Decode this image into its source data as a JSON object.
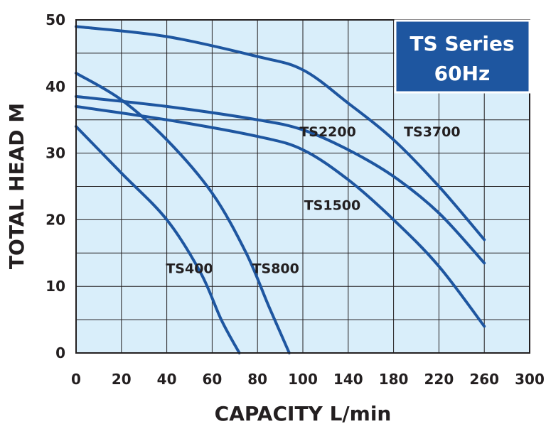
{
  "chart_data": {
    "type": "line",
    "title": "TS Series",
    "subtitle": "60Hz",
    "xlabel": "CAPACITY L/min",
    "ylabel": "TOTAL HEAD M",
    "x_tick_labels": [
      "0",
      "20",
      "40",
      "60",
      "80",
      "100",
      "140",
      "180",
      "220",
      "260",
      "300"
    ],
    "y_ticks": [
      0,
      10,
      20,
      30,
      40,
      50
    ],
    "ylim": [
      0,
      50
    ],
    "grid": true,
    "legend": "none (series labelled directly on the curves)",
    "x_axis_note": "x axis is piecewise: 20 L/min per gridline up to 100, then 40 L/min per gridline up to 300",
    "series": [
      {
        "name": "TS400",
        "x": [
          0,
          20,
          40,
          55,
          64,
          72
        ],
        "y": [
          34,
          27,
          20,
          12,
          5,
          0
        ]
      },
      {
        "name": "TS800",
        "x": [
          0,
          20,
          40,
          60,
          75,
          85,
          94
        ],
        "y": [
          42,
          38,
          32,
          24,
          15,
          7,
          0
        ]
      },
      {
        "name": "TS1500",
        "x": [
          0,
          40,
          80,
          100,
          140,
          180,
          220,
          260
        ],
        "y": [
          37,
          35,
          32.5,
          30.5,
          26,
          20,
          13,
          4
        ]
      },
      {
        "name": "TS2200",
        "x": [
          0,
          40,
          80,
          100,
          140,
          180,
          220,
          260
        ],
        "y": [
          38.5,
          37,
          35,
          33.5,
          30.5,
          26.5,
          21,
          13.5
        ]
      },
      {
        "name": "TS3700",
        "x": [
          0,
          40,
          80,
          100,
          140,
          180,
          220,
          260
        ],
        "y": [
          49,
          47.5,
          44.5,
          42.5,
          37.5,
          32,
          25,
          17
        ]
      }
    ],
    "colors": {
      "curve": "#1e56a0",
      "plot_background": "#d9eefa",
      "grid": "#231f20",
      "badge": "#1e56a0"
    }
  }
}
